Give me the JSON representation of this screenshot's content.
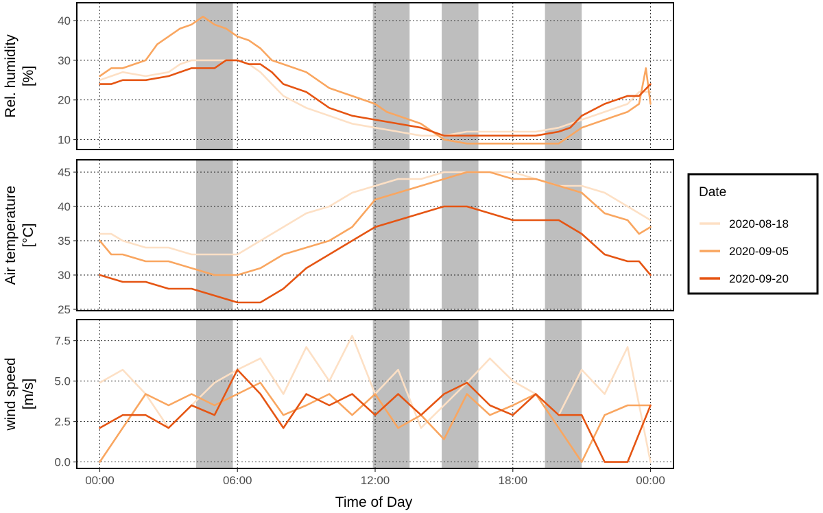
{
  "chart_data": {
    "type": "line",
    "xlabel": "Time of Day",
    "x_ticks": [
      "00:00",
      "06:00",
      "12:00",
      "18:00",
      "00:00"
    ],
    "x_tick_hours": [
      0,
      6,
      12,
      18,
      24
    ],
    "xlim_hours": [
      -1,
      25
    ],
    "shaded_intervals_hours": [
      [
        4.2,
        5.8
      ],
      [
        11.9,
        13.5
      ],
      [
        14.9,
        16.5
      ],
      [
        19.4,
        21.0
      ]
    ],
    "shade_color": "#bebebe",
    "legend": {
      "title": "Date",
      "entries": [
        {
          "label": "2020-08-18",
          "color": "#fde0c5"
        },
        {
          "label": "2020-09-05",
          "color": "#f9a660"
        },
        {
          "label": "2020-09-20",
          "color": "#e55513"
        }
      ],
      "placement": "right"
    },
    "panels": [
      {
        "ylabel_lines": [
          "Rel. humidity",
          "[%]"
        ],
        "ylim": [
          7.5,
          44.5
        ],
        "yticks": [
          10,
          20,
          30,
          40
        ],
        "ytick_labels": [
          "10",
          "20",
          "30",
          "40"
        ],
        "series": [
          {
            "name": "2020-08-18",
            "x": [
              0,
              0.5,
              1,
              2,
              3,
              3.5,
              4,
              5,
              6,
              6.5,
              7,
              7.5,
              8,
              9,
              10,
              11,
              12,
              13,
              14,
              15,
              16,
              17,
              18,
              19,
              20,
              21,
              22,
              23,
              23.5,
              24
            ],
            "y": [
              25,
              26,
              27,
              26,
              27,
              29,
              30,
              30,
              30,
              29,
              27,
              24,
              21,
              18,
              16,
              14,
              13,
              12,
              11,
              11,
              12,
              12,
              12,
              12,
              13,
              15,
              17,
              19,
              22,
              22
            ]
          },
          {
            "name": "2020-09-05",
            "x": [
              0,
              0.5,
              1,
              1.5,
              2,
              2.5,
              3,
              3.5,
              4,
              4.5,
              5,
              5.5,
              6,
              6.5,
              7,
              7.5,
              8,
              9,
              10,
              11,
              12,
              12.5,
              13,
              14,
              15,
              16,
              17,
              18,
              19,
              20,
              20.5,
              21,
              22,
              23,
              23.5,
              23.8,
              24
            ],
            "y": [
              26,
              28,
              28,
              29,
              30,
              34,
              36,
              38,
              39,
              41,
              39,
              38,
              36,
              35,
              33,
              30,
              29,
              27,
              23,
              21,
              19,
              17,
              16,
              14,
              10,
              9,
              9,
              9,
              9,
              9,
              11,
              13,
              15,
              17,
              19,
              28,
              19
            ]
          },
          {
            "name": "2020-09-20",
            "x": [
              0,
              0.5,
              1,
              2,
              3,
              4,
              5,
              5.5,
              6,
              6.5,
              7,
              7.5,
              8,
              9,
              10,
              11,
              12,
              13,
              14,
              15,
              16,
              17,
              18,
              19,
              20,
              20.5,
              21,
              22,
              22.5,
              23,
              23.5,
              24
            ],
            "y": [
              24,
              24,
              25,
              25,
              26,
              28,
              28,
              30,
              30,
              29,
              29,
              27,
              24,
              22,
              18,
              16,
              15,
              14,
              13,
              11,
              11,
              11,
              11,
              11,
              12,
              13,
              16,
              19,
              20,
              21,
              21,
              24
            ]
          }
        ]
      },
      {
        "ylabel_lines": [
          "Air temperature",
          "[°C]"
        ],
        "ylim": [
          24.8,
          46.8
        ],
        "yticks": [
          25,
          30,
          35,
          40,
          45
        ],
        "ytick_labels": [
          "25",
          "30",
          "35",
          "40",
          "45"
        ],
        "series": [
          {
            "name": "2020-08-18",
            "x": [
              0,
              0.5,
              1,
              2,
              3,
              4,
              5,
              6,
              6.5,
              7,
              8,
              9,
              10,
              11,
              12,
              13,
              14,
              15,
              16,
              17,
              18,
              19,
              20,
              21,
              22,
              23,
              24
            ],
            "y": [
              36,
              36,
              35,
              34,
              34,
              33,
              33,
              33,
              34,
              35,
              37,
              39,
              40,
              42,
              43,
              44,
              44,
              45,
              45,
              45,
              45,
              44,
              43,
              43,
              42,
              40,
              38
            ]
          },
          {
            "name": "2020-09-05",
            "x": [
              0,
              0.5,
              1,
              2,
              3,
              4,
              5,
              6,
              7,
              8,
              9,
              10,
              11,
              12,
              13,
              14,
              15,
              16,
              17,
              18,
              19,
              20,
              21,
              22,
              23,
              23.5,
              24
            ],
            "y": [
              35,
              33,
              33,
              32,
              32,
              31,
              30,
              30,
              31,
              33,
              34,
              35,
              37,
              41,
              42,
              43,
              44,
              45,
              45,
              44,
              44,
              43,
              42,
              39,
              38,
              36,
              37
            ]
          },
          {
            "name": "2020-09-20",
            "x": [
              0,
              1,
              2,
              3,
              4,
              5,
              6,
              7,
              8,
              9,
              10,
              11,
              12,
              13,
              14,
              15,
              16,
              17,
              18,
              19,
              20,
              21,
              22,
              23,
              23.5,
              24
            ],
            "y": [
              30,
              29,
              29,
              28,
              28,
              27,
              26,
              26,
              28,
              31,
              33,
              35,
              37,
              38,
              39,
              40,
              40,
              39,
              38,
              38,
              38,
              36,
              33,
              32,
              32,
              30
            ]
          }
        ]
      },
      {
        "ylabel_lines": [
          "wind speed",
          "[m/s]"
        ],
        "ylim": [
          -0.4,
          8.8
        ],
        "yticks": [
          0,
          2.5,
          5,
          7.5
        ],
        "ytick_labels": [
          "0.0",
          "2.5",
          "5.0",
          "7.5"
        ],
        "series": [
          {
            "name": "2020-08-18",
            "x": [
              0,
              1,
              2,
              3,
              4,
              5,
              6,
              7,
              8,
              9,
              10,
              11,
              12,
              13,
              14,
              15,
              16,
              17,
              18,
              19,
              20,
              21,
              22,
              23,
              24
            ],
            "y": [
              4.9,
              5.7,
              4.2,
              2.1,
              3.5,
              4.9,
              5.7,
              6.4,
              4.2,
              7.1,
              5.0,
              7.8,
              4.2,
              5.7,
              2.1,
              3.5,
              4.9,
              6.4,
              5.0,
              4.2,
              2.9,
              5.7,
              4.2,
              7.1,
              0.0
            ]
          },
          {
            "name": "2020-09-05",
            "x": [
              0,
              1,
              2,
              3,
              4,
              5,
              6,
              7,
              8,
              9,
              10,
              11,
              12,
              13,
              14,
              15,
              16,
              17,
              18,
              19,
              20,
              21,
              22,
              23,
              24
            ],
            "y": [
              0.0,
              2.1,
              4.2,
              3.5,
              4.2,
              3.5,
              4.2,
              4.9,
              2.9,
              3.5,
              4.2,
              2.9,
              4.2,
              2.1,
              2.9,
              1.4,
              4.2,
              2.9,
              3.5,
              4.2,
              2.1,
              0.0,
              2.9,
              3.5,
              3.5
            ]
          },
          {
            "name": "2020-09-20",
            "x": [
              0,
              1,
              2,
              3,
              4,
              5,
              6,
              7,
              8,
              9,
              10,
              11,
              12,
              13,
              14,
              15,
              16,
              17,
              18,
              19,
              20,
              21,
              22,
              23,
              24
            ],
            "y": [
              2.1,
              2.9,
              2.9,
              2.1,
              3.5,
              2.9,
              5.7,
              4.2,
              2.1,
              4.2,
              3.5,
              4.2,
              2.9,
              4.2,
              2.9,
              4.2,
              4.9,
              3.5,
              2.9,
              4.2,
              2.9,
              2.9,
              0.0,
              0.0,
              3.5
            ]
          }
        ]
      }
    ]
  }
}
